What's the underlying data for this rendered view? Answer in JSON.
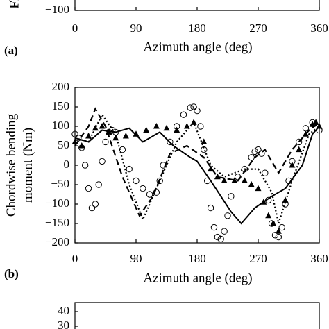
{
  "chart_data": [
    {
      "type": "line",
      "panel": "(a)",
      "ylabel": "Fl",
      "xlabel": "Azimuth angle (deg)",
      "xlim": [
        0,
        360
      ],
      "xticks": [
        0,
        90,
        180,
        270,
        360
      ],
      "yticks": [
        {
          "value": -100,
          "label": "−100"
        }
      ]
    },
    {
      "type": "line",
      "panel": "(b)",
      "ylabel": "Chordwise bending moment (Nm)",
      "xlabel": "Azimuth angle (deg)",
      "xlim": [
        0,
        360
      ],
      "xticks": [
        0,
        90,
        180,
        270,
        360
      ],
      "ylim": [
        -200,
        200
      ],
      "yticks": [
        200,
        150,
        100,
        50,
        0,
        {
          "value": -50,
          "label": "−50"
        },
        {
          "value": -100,
          "label": "−100"
        },
        {
          "value": -150,
          "label": "−150"
        },
        {
          "value": -200,
          "label": "−200"
        }
      ],
      "series": [
        {
          "style": "solid",
          "color": "#000000",
          "x": [
            0,
            20,
            40,
            60,
            80,
            100,
            125,
            145,
            170,
            180,
            200,
            230,
            245,
            265,
            290,
            310,
            335,
            350,
            360
          ],
          "values": [
            70,
            60,
            90,
            85,
            95,
            60,
            85,
            50,
            20,
            10,
            -40,
            -120,
            -150,
            -110,
            -80,
            -60,
            0,
            80,
            100
          ]
        },
        {
          "style": "dashed",
          "color": "#000000",
          "x": [
            0,
            20,
            30,
            45,
            70,
            95,
            115,
            140,
            165,
            190,
            210,
            240,
            265,
            280,
            300,
            320,
            345,
            360
          ],
          "values": [
            50,
            100,
            145,
            100,
            -30,
            -130,
            -80,
            30,
            50,
            20,
            -30,
            -40,
            20,
            40,
            -20,
            40,
            90,
            110
          ]
        },
        {
          "style": "dotted",
          "color": "#000000",
          "x": [
            0,
            20,
            40,
            60,
            80,
            100,
            120,
            150,
            175,
            200,
            220,
            250,
            270,
            290,
            300,
            320,
            345,
            360
          ],
          "values": [
            70,
            60,
            130,
            80,
            -50,
            -140,
            -60,
            60,
            110,
            0,
            -30,
            -10,
            -10,
            -70,
            -150,
            -40,
            80,
            100
          ]
        },
        {
          "style": "circle",
          "color": "#000000",
          "x": [
            0,
            5,
            10,
            15,
            20,
            25,
            30,
            35,
            40,
            45,
            50,
            55,
            60,
            70,
            80,
            90,
            100,
            110,
            120,
            125,
            130,
            140,
            150,
            160,
            170,
            175,
            180,
            185,
            190,
            195,
            200,
            205,
            210,
            215,
            220,
            225,
            230,
            240,
            250,
            260,
            265,
            270,
            275,
            280,
            285,
            290,
            295,
            300,
            305,
            310,
            315,
            320,
            330,
            340,
            350,
            360
          ],
          "values": [
            80,
            70,
            45,
            0,
            -60,
            -110,
            -100,
            -50,
            10,
            60,
            85,
            90,
            85,
            40,
            -10,
            -40,
            -60,
            -75,
            -70,
            -40,
            0,
            60,
            100,
            130,
            148,
            150,
            140,
            100,
            40,
            -40,
            -110,
            -160,
            -185,
            -190,
            -170,
            -130,
            -80,
            -30,
            -10,
            20,
            35,
            40,
            30,
            -20,
            -90,
            -150,
            -180,
            -185,
            -160,
            -100,
            -40,
            10,
            60,
            95,
            110,
            90
          ]
        },
        {
          "style": "triangle",
          "color": "#000000",
          "x": [
            0,
            10,
            20,
            30,
            40,
            50,
            60,
            75,
            90,
            105,
            120,
            135,
            150,
            165,
            175,
            190,
            200,
            210,
            220,
            235,
            250,
            260,
            270,
            278,
            285,
            292,
            300,
            310,
            320,
            330,
            340,
            350,
            355,
            360
          ],
          "values": [
            60,
            50,
            75,
            95,
            100,
            85,
            70,
            75,
            80,
            90,
            100,
            95,
            90,
            100,
            110,
            60,
            -10,
            -30,
            -40,
            -40,
            -40,
            -50,
            -60,
            -95,
            -130,
            -150,
            -170,
            -90,
            0,
            40,
            80,
            105,
            110,
            100
          ]
        }
      ]
    },
    {
      "type": "line",
      "yticks": [
        40,
        30
      ]
    }
  ]
}
